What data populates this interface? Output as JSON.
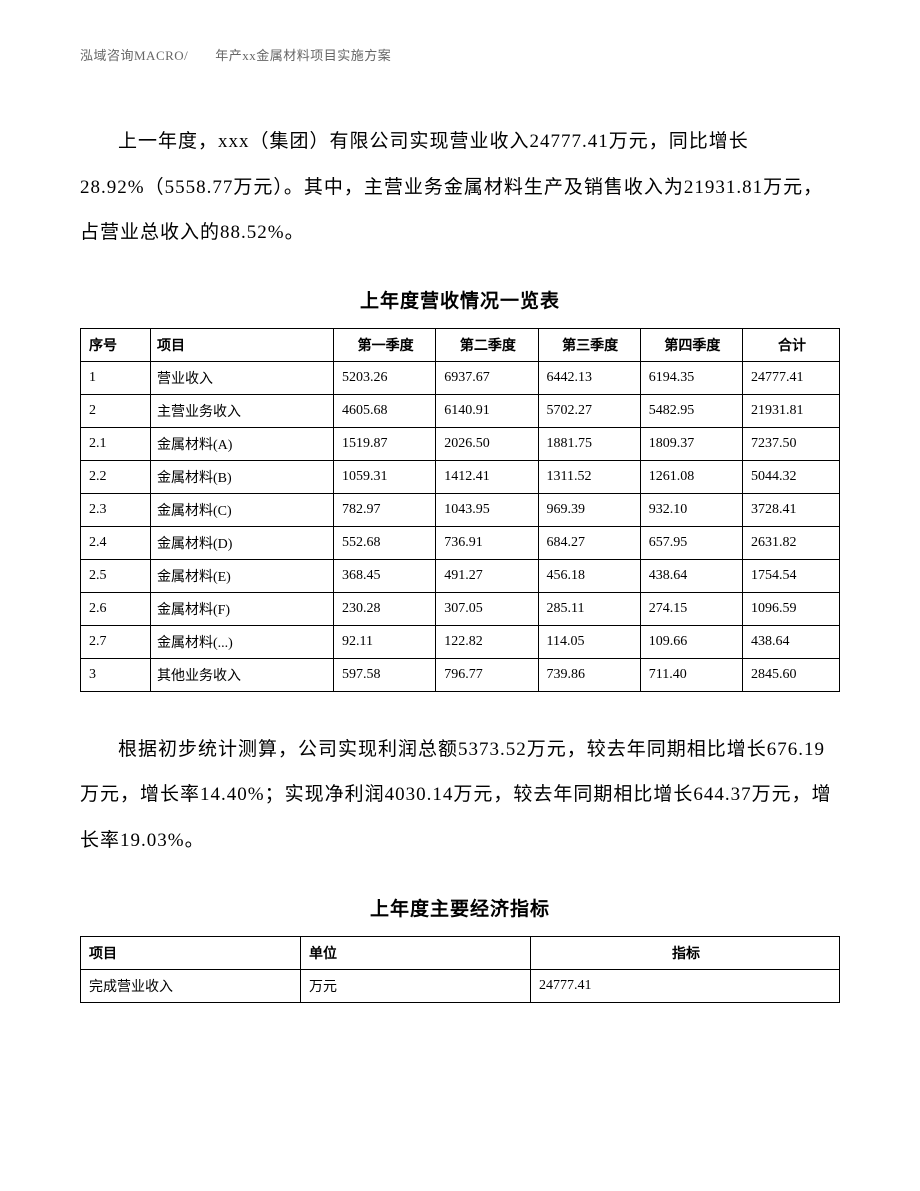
{
  "header": "泓域咨询MACRO/　　年产xx金属材料项目实施方案",
  "paragraph1": "上一年度，xxx（集团）有限公司实现营业收入24777.41万元，同比增长28.92%（5558.77万元）。其中，主营业务金属材料生产及销售收入为21931.81万元，占营业总收入的88.52%。",
  "table1": {
    "title": "上年度营收情况一览表",
    "columns": [
      "序号",
      "项目",
      "第一季度",
      "第二季度",
      "第三季度",
      "第四季度",
      "合计"
    ],
    "rows": [
      [
        "1",
        "营业收入",
        "5203.26",
        "6937.67",
        "6442.13",
        "6194.35",
        "24777.41"
      ],
      [
        "2",
        "主营业务收入",
        "4605.68",
        "6140.91",
        "5702.27",
        "5482.95",
        "21931.81"
      ],
      [
        "2.1",
        "金属材料(A)",
        "1519.87",
        "2026.50",
        "1881.75",
        "1809.37",
        "7237.50"
      ],
      [
        "2.2",
        "金属材料(B)",
        "1059.31",
        "1412.41",
        "1311.52",
        "1261.08",
        "5044.32"
      ],
      [
        "2.3",
        "金属材料(C)",
        "782.97",
        "1043.95",
        "969.39",
        "932.10",
        "3728.41"
      ],
      [
        "2.4",
        "金属材料(D)",
        "552.68",
        "736.91",
        "684.27",
        "657.95",
        "2631.82"
      ],
      [
        "2.5",
        "金属材料(E)",
        "368.45",
        "491.27",
        "456.18",
        "438.64",
        "1754.54"
      ],
      [
        "2.6",
        "金属材料(F)",
        "230.28",
        "307.05",
        "285.11",
        "274.15",
        "1096.59"
      ],
      [
        "2.7",
        "金属材料(...)",
        "92.11",
        "122.82",
        "114.05",
        "109.66",
        "438.64"
      ],
      [
        "3",
        "其他业务收入",
        "597.58",
        "796.77",
        "739.86",
        "711.40",
        "2845.60"
      ]
    ]
  },
  "paragraph2": "根据初步统计测算，公司实现利润总额5373.52万元，较去年同期相比增长676.19万元，增长率14.40%；实现净利润4030.14万元，较去年同期相比增长644.37万元，增长率19.03%。",
  "table2": {
    "title": "上年度主要经济指标",
    "columns": [
      "项目",
      "单位",
      "指标"
    ],
    "rows": [
      [
        "完成营业收入",
        "万元",
        "24777.41"
      ]
    ]
  }
}
